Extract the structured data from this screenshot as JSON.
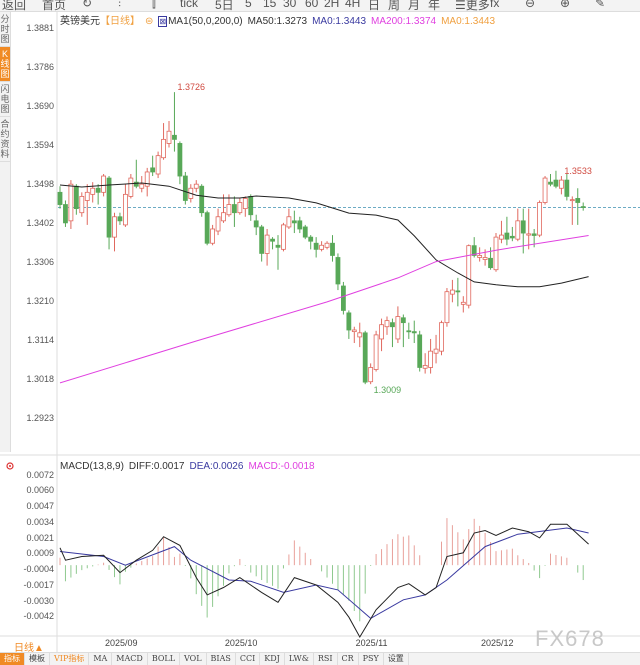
{
  "toolbar": {
    "items": [
      "返回",
      "首页",
      "↻",
      "⫶",
      "⫿",
      "tick",
      "5日",
      "5",
      "15",
      "30",
      "60",
      "2H",
      "4H",
      "日",
      "周",
      "月",
      "年",
      "☰更多",
      "fx",
      "⊖",
      "⊕",
      "✎"
    ]
  },
  "left_tabs": [
    "分时图",
    "K线图",
    "闪电图",
    "合约资料"
  ],
  "legend": {
    "symbol": "英镑美元",
    "period": "【日线】",
    "ma_name": "MA1(50,0,200,0)",
    "ma50": "MA50:1.3273",
    "ma0_a": "MA0:1.3443",
    "ma200": "MA200:1.3374",
    "ma0_b": "MA0:1.3443"
  },
  "macd_legend": {
    "name": "MACD(13,8,9)",
    "diff": "DIFF:0.0017",
    "dea": "DEA:0.0026",
    "macd": "MACD:-0.0018"
  },
  "bottom": {
    "period": "日线▲",
    "tabs": [
      "指标",
      "模板",
      "VIP指标",
      "MA",
      "MACD",
      "BOLL",
      "VOL",
      "BIAS",
      "CCI",
      "KDJ",
      "LW&",
      "RSI",
      "CR",
      "PSY",
      "设置"
    ],
    "watermark": "FX678"
  },
  "colors": {
    "up": "#e0685e",
    "down": "#58a858",
    "ma50": "#222222",
    "ma200": "#e040e0",
    "last": "#3b8fb0",
    "diff": "#222222",
    "dea": "#3a3aa0"
  },
  "chart_data": [
    {
      "type": "candlestick",
      "title": "英镑美元 日线",
      "price_ticks": [
        "1.3881",
        "1.3786",
        "1.3690",
        "1.3594",
        "1.3498",
        "1.3402",
        "1.3306",
        "1.3210",
        "1.3114",
        "1.3018",
        "1.2923"
      ],
      "ylim": [
        1.2923,
        1.3881
      ],
      "x_labels": [
        {
          "index": 11,
          "label": "2025/09"
        },
        {
          "index": 33,
          "label": "2025/10"
        },
        {
          "index": 57,
          "label": "2025/11"
        },
        {
          "index": 80,
          "label": "2025/12"
        }
      ],
      "annotations": [
        {
          "index": 21,
          "value": "1.3726"
        },
        {
          "index": 57,
          "value": "1.3009"
        },
        {
          "index": 92,
          "value": "1.3533"
        }
      ],
      "last_price": 1.3443,
      "ohlc": [
        [
          1.348,
          1.3495,
          1.344,
          1.345
        ],
        [
          1.345,
          1.346,
          1.3395,
          1.3405
        ],
        [
          1.341,
          1.351,
          1.339,
          1.35
        ],
        [
          1.3495,
          1.35,
          1.3425,
          1.344
        ],
        [
          1.343,
          1.348,
          1.342,
          1.347
        ],
        [
          1.346,
          1.35,
          1.34,
          1.348
        ],
        [
          1.3475,
          1.3505,
          1.3455,
          1.349
        ],
        [
          1.349,
          1.35,
          1.345,
          1.348
        ],
        [
          1.348,
          1.3525,
          1.347,
          1.352
        ],
        [
          1.3515,
          1.352,
          1.334,
          1.337
        ],
        [
          1.337,
          1.343,
          1.3335,
          1.342
        ],
        [
          1.342,
          1.343,
          1.34,
          1.341
        ],
        [
          1.34,
          1.35,
          1.3395,
          1.3475
        ],
        [
          1.347,
          1.3525,
          1.3465,
          1.3515
        ],
        [
          1.3505,
          1.356,
          1.349,
          1.3495
        ],
        [
          1.349,
          1.352,
          1.348,
          1.35
        ],
        [
          1.3495,
          1.354,
          1.347,
          1.353
        ],
        [
          1.354,
          1.357,
          1.352,
          1.353
        ],
        [
          1.3525,
          1.358,
          1.3515,
          1.357
        ],
        [
          1.3565,
          1.365,
          1.356,
          1.361
        ],
        [
          1.36,
          1.3655,
          1.359,
          1.363
        ],
        [
          1.362,
          1.3726,
          1.358,
          1.361
        ],
        [
          1.36,
          1.3605,
          1.35,
          1.352
        ],
        [
          1.352,
          1.353,
          1.345,
          1.346
        ],
        [
          1.3465,
          1.35,
          1.3455,
          1.349
        ],
        [
          1.349,
          1.351,
          1.348,
          1.35
        ],
        [
          1.3495,
          1.35,
          1.342,
          1.343
        ],
        [
          1.343,
          1.3435,
          1.335,
          1.3355
        ],
        [
          1.3355,
          1.34,
          1.335,
          1.339
        ],
        [
          1.3385,
          1.344,
          1.3375,
          1.342
        ],
        [
          1.341,
          1.3475,
          1.3405,
          1.343
        ],
        [
          1.3425,
          1.3475,
          1.342,
          1.345
        ],
        [
          1.345,
          1.347,
          1.3395,
          1.343
        ],
        [
          1.343,
          1.3465,
          1.3425,
          1.3455
        ],
        [
          1.344,
          1.347,
          1.342,
          1.3465
        ],
        [
          1.347,
          1.3475,
          1.341,
          1.3425
        ],
        [
          1.341,
          1.3425,
          1.3375,
          1.3395
        ],
        [
          1.3395,
          1.34,
          1.331,
          1.333
        ],
        [
          1.333,
          1.339,
          1.33,
          1.3375
        ],
        [
          1.3365,
          1.337,
          1.334,
          1.336
        ],
        [
          1.335,
          1.3375,
          1.329,
          1.3345
        ],
        [
          1.334,
          1.3405,
          1.3335,
          1.34
        ],
        [
          1.3395,
          1.344,
          1.339,
          1.342
        ],
        [
          1.341,
          1.3435,
          1.338,
          1.3405
        ],
        [
          1.341,
          1.342,
          1.338,
          1.339
        ],
        [
          1.3395,
          1.34,
          1.3365,
          1.337
        ],
        [
          1.337,
          1.3375,
          1.334,
          1.336
        ],
        [
          1.3355,
          1.337,
          1.332,
          1.334
        ],
        [
          1.334,
          1.336,
          1.3335,
          1.335
        ],
        [
          1.3345,
          1.336,
          1.334,
          1.3355
        ],
        [
          1.3355,
          1.3375,
          1.331,
          1.3325
        ],
        [
          1.332,
          1.333,
          1.324,
          1.3255
        ],
        [
          1.325,
          1.326,
          1.318,
          1.319
        ],
        [
          1.3184,
          1.319,
          1.312,
          1.3142
        ],
        [
          1.3138,
          1.315,
          1.311,
          1.3142
        ],
        [
          1.3125,
          1.316,
          1.31,
          1.3135
        ],
        [
          1.3135,
          1.314,
          1.3009,
          1.3014
        ],
        [
          1.3015,
          1.306,
          1.3009,
          1.305
        ],
        [
          1.3045,
          1.314,
          1.304,
          1.313
        ],
        [
          1.312,
          1.317,
          1.309,
          1.3155
        ],
        [
          1.315,
          1.3175,
          1.313,
          1.3165
        ],
        [
          1.316,
          1.317,
          1.31,
          1.315
        ],
        [
          1.312,
          1.32,
          1.311,
          1.3175
        ],
        [
          1.3172,
          1.318,
          1.31,
          1.316
        ],
        [
          1.314,
          1.316,
          1.312,
          1.3138
        ],
        [
          1.3138,
          1.3165,
          1.311,
          1.3135
        ],
        [
          1.313,
          1.314,
          1.304,
          1.305
        ],
        [
          1.3048,
          1.3085,
          1.3035,
          1.3055
        ],
        [
          1.305,
          1.312,
          1.3035,
          1.309
        ],
        [
          1.3085,
          1.313,
          1.306,
          1.3095
        ],
        [
          1.309,
          1.3165,
          1.308,
          1.316
        ],
        [
          1.316,
          1.3245,
          1.315,
          1.3236
        ],
        [
          1.323,
          1.3265,
          1.321,
          1.324
        ],
        [
          1.3238,
          1.327,
          1.32,
          1.3236
        ],
        [
          1.3205,
          1.3225,
          1.3185,
          1.321
        ],
        [
          1.3203,
          1.3352,
          1.3195,
          1.3349
        ],
        [
          1.3349,
          1.337,
          1.332,
          1.3325
        ],
        [
          1.332,
          1.3345,
          1.331,
          1.3325
        ],
        [
          1.3315,
          1.334,
          1.33,
          1.332
        ],
        [
          1.3318,
          1.3345,
          1.329,
          1.3295
        ],
        [
          1.329,
          1.338,
          1.3285,
          1.337
        ],
        [
          1.3365,
          1.341,
          1.3355,
          1.3375
        ],
        [
          1.338,
          1.342,
          1.335,
          1.3365
        ],
        [
          1.3372,
          1.3395,
          1.336,
          1.3368
        ],
        [
          1.3365,
          1.344,
          1.336,
          1.341
        ],
        [
          1.341,
          1.344,
          1.333,
          1.338
        ],
        [
          1.3375,
          1.344,
          1.334,
          1.3378
        ],
        [
          1.3378,
          1.339,
          1.3345,
          1.3374
        ],
        [
          1.3375,
          1.346,
          1.337,
          1.3455
        ],
        [
          1.3455,
          1.352,
          1.345,
          1.3515
        ],
        [
          1.3505,
          1.3525,
          1.3495,
          1.35
        ],
        [
          1.351,
          1.3533,
          1.349,
          1.3495
        ],
        [
          1.349,
          1.352,
          1.3475,
          1.351
        ],
        [
          1.351,
          1.3525,
          1.346,
          1.347
        ],
        [
          1.346,
          1.347,
          1.34,
          1.3462
        ],
        [
          1.3465,
          1.349,
          1.34,
          1.3455
        ],
        [
          1.3445,
          1.3455,
          1.3435,
          1.3443
        ]
      ],
      "series": [
        {
          "name": "MA50",
          "points": [
            [
              0,
              1.3498
            ],
            [
              4,
              1.3493
            ],
            [
              9,
              1.3498
            ],
            [
              15,
              1.3503
            ],
            [
              20,
              1.3495
            ],
            [
              25,
              1.3473
            ],
            [
              29,
              1.3466
            ],
            [
              33,
              1.3466
            ],
            [
              36,
              1.3471
            ],
            [
              42,
              1.3466
            ],
            [
              47,
              1.3454
            ],
            [
              53,
              1.3429
            ],
            [
              58,
              1.3424
            ],
            [
              62,
              1.3412
            ],
            [
              65,
              1.3373
            ],
            [
              69,
              1.3314
            ],
            [
              73,
              1.3282
            ],
            [
              76,
              1.326
            ],
            [
              80,
              1.3253
            ],
            [
              84,
              1.3248
            ],
            [
              88,
              1.3248
            ],
            [
              92,
              1.3257
            ],
            [
              97,
              1.3273
            ]
          ]
        },
        {
          "name": "MA200",
          "points": [
            [
              0,
              1.3012
            ],
            [
              25,
              1.3115
            ],
            [
              49,
              1.3211
            ],
            [
              62,
              1.327
            ],
            [
              69,
              1.331
            ],
            [
              80,
              1.3338
            ],
            [
              97,
              1.3374
            ]
          ]
        }
      ]
    },
    {
      "type": "macd",
      "title": "MACD(13,8,9)",
      "y_ticks": [
        "0.0072",
        "0.0060",
        "0.0047",
        "0.0034",
        "0.0021",
        "0.0009",
        "-0.0004",
        "-0.0017",
        "-0.0030",
        "-0.0042"
      ],
      "ylim": [
        -0.0058,
        0.0072
      ],
      "series": [
        {
          "name": "DIFF",
          "points": [
            [
              0,
              0.0014
            ],
            [
              1,
              0.0004
            ],
            [
              4,
              0.0007
            ],
            [
              8,
              0.0008
            ],
            [
              11,
              -0.0006
            ],
            [
              14,
              0.0004
            ],
            [
              17,
              0.0012
            ],
            [
              19,
              0.0023
            ],
            [
              22,
              0.0016
            ],
            [
              25,
              -0.001
            ],
            [
              27,
              -0.0024
            ],
            [
              30,
              -0.0018
            ],
            [
              33,
              -0.001
            ],
            [
              37,
              -0.0022
            ],
            [
              40,
              -0.003
            ],
            [
              43,
              -0.001
            ],
            [
              47,
              -0.0016
            ],
            [
              51,
              -0.003
            ],
            [
              53,
              -0.0042
            ],
            [
              55,
              -0.0058
            ],
            [
              58,
              -0.0036
            ],
            [
              62,
              -0.0018
            ],
            [
              64,
              -0.0015
            ],
            [
              67,
              -0.0024
            ],
            [
              69,
              -0.0018
            ],
            [
              71,
              0.0007
            ],
            [
              74,
              0.001
            ],
            [
              76,
              0.0026
            ],
            [
              78,
              0.0028
            ],
            [
              80,
              0.0024
            ],
            [
              83,
              0.003
            ],
            [
              86,
              0.0027
            ],
            [
              88,
              0.0022
            ],
            [
              90,
              0.0033
            ],
            [
              93,
              0.0033
            ],
            [
              95,
              0.0025
            ],
            [
              97,
              0.0017
            ]
          ]
        },
        {
          "name": "DEA",
          "points": [
            [
              0,
              0.0011
            ],
            [
              8,
              0.0007
            ],
            [
              12,
              0.0
            ],
            [
              21,
              0.0015
            ],
            [
              24,
              0.0004
            ],
            [
              31,
              -0.0012
            ],
            [
              35,
              -0.0013
            ],
            [
              41,
              -0.0022
            ],
            [
              47,
              -0.0016
            ],
            [
              51,
              -0.002
            ],
            [
              57,
              -0.0043
            ],
            [
              63,
              -0.0028
            ],
            [
              67,
              -0.0024
            ],
            [
              71,
              -0.0012
            ],
            [
              78,
              0.0015
            ],
            [
              84,
              0.0025
            ],
            [
              93,
              0.003
            ],
            [
              97,
              0.0026
            ]
          ]
        }
      ],
      "histogram": "MACD = 2 × (DIFF − DEA)"
    }
  ]
}
